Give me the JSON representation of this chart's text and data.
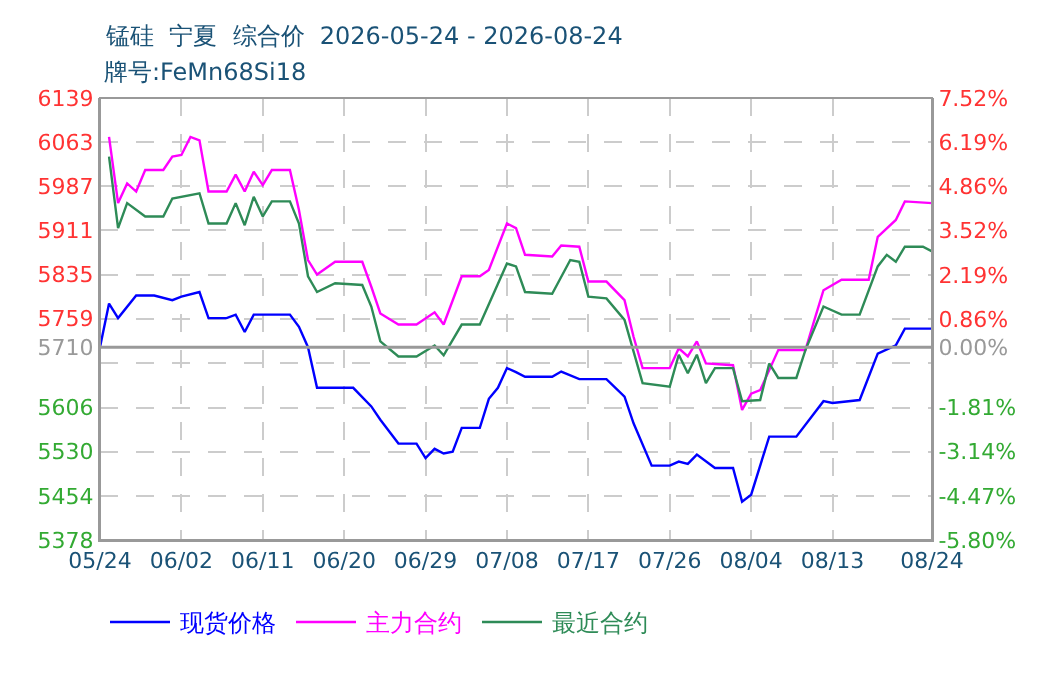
{
  "chart_data": {
    "type": "line",
    "title": "锰硅  宁夏  综合价  2026-05-24 - 2026-08-24",
    "subtitle": "牌号:FeMn68Si18",
    "xlim": [
      "2026-05-24",
      "2026-08-24"
    ],
    "xticks": [
      {
        "value": "2026-05-24",
        "label": "05/24"
      },
      {
        "value": "2026-06-02",
        "label": "06/02"
      },
      {
        "value": "2026-06-11",
        "label": "06/11"
      },
      {
        "value": "2026-06-20",
        "label": "06/20"
      },
      {
        "value": "2026-06-29",
        "label": "06/29"
      },
      {
        "value": "2026-07-08",
        "label": "07/08"
      },
      {
        "value": "2026-07-17",
        "label": "07/17"
      },
      {
        "value": "2026-07-26",
        "label": "07/26"
      },
      {
        "value": "2026-08-04",
        "label": "08/04"
      },
      {
        "value": "2026-08-13",
        "label": "08/13"
      },
      {
        "value": "2026-08-24",
        "label": "08/24"
      }
    ],
    "ylim": [
      5378,
      6139
    ],
    "yticks": [
      6139,
      6063,
      5987,
      5911,
      5835,
      5759,
      5710,
      {
        "value": 5683,
        "label": null
      },
      5606,
      5530,
      5454,
      5378
    ],
    "y2lim": [
      -5.8,
      7.52
    ],
    "y2ticks": [
      {
        "value": 7.52,
        "label": "7.52%"
      },
      {
        "value": 6.19,
        "label": "6.19%"
      },
      {
        "value": 4.86,
        "label": "4.86%"
      },
      {
        "value": 3.52,
        "label": "3.52%"
      },
      {
        "value": 2.19,
        "label": "2.19%"
      },
      {
        "value": 0.86,
        "label": "0.86%"
      },
      {
        "value": 0.0,
        "label": "0.00%"
      },
      {
        "value": -1.81,
        "label": "-1.81%"
      },
      {
        "value": -3.14,
        "label": "-3.14%"
      },
      {
        "value": -4.47,
        "label": "-4.47%"
      },
      {
        "value": -5.8,
        "label": "-5.80%"
      }
    ],
    "ref_lines": [
      {
        "axis": "y",
        "value": 5710,
        "color": "#999999",
        "line_style": "solid"
      }
    ],
    "grid": true,
    "legend": "bottom",
    "marker": "none",
    "line_style": "solid",
    "series": [
      {
        "name": "现货价格",
        "color": "#0000ff",
        "x": [
          "2026-05-24",
          "2026-05-25",
          "2026-05-26",
          "2026-05-28",
          "2026-05-30",
          "2026-06-01",
          "2026-06-02",
          "2026-06-04",
          "2026-06-05",
          "2026-06-07",
          "2026-06-08",
          "2026-06-09",
          "2026-06-10",
          "2026-06-12",
          "2026-06-14",
          "2026-06-15",
          "2026-06-16",
          "2026-06-17",
          "2026-06-21",
          "2026-06-23",
          "2026-06-24",
          "2026-06-26",
          "2026-06-28",
          "2026-06-29",
          "2026-06-30",
          "2026-07-01",
          "2026-07-02",
          "2026-07-03",
          "2026-07-05",
          "2026-07-06",
          "2026-07-07",
          "2026-07-08",
          "2026-07-09",
          "2026-07-10",
          "2026-07-13",
          "2026-07-14",
          "2026-07-16",
          "2026-07-19",
          "2026-07-21",
          "2026-07-22",
          "2026-07-24",
          "2026-07-26",
          "2026-07-27",
          "2026-07-28",
          "2026-07-29",
          "2026-07-31",
          "2026-08-02",
          "2026-08-03",
          "2026-08-04",
          "2026-08-06",
          "2026-08-09",
          "2026-08-12",
          "2026-08-13",
          "2026-08-16",
          "2026-08-18",
          "2026-08-20",
          "2026-08-21",
          "2026-08-24"
        ],
        "values": [
          5710,
          5785,
          5760,
          5799,
          5799,
          5791,
          5797,
          5805,
          5760,
          5760,
          5766,
          5736,
          5766,
          5766,
          5766,
          5745,
          5710,
          5640,
          5640,
          5608,
          5585,
          5544,
          5544,
          5519,
          5535,
          5527,
          5530,
          5571,
          5571,
          5621,
          5640,
          5674,
          5667,
          5659,
          5659,
          5668,
          5655,
          5655,
          5625,
          5579,
          5506,
          5506,
          5513,
          5509,
          5525,
          5502,
          5502,
          5444,
          5456,
          5556,
          5556,
          5617,
          5614,
          5619,
          5699,
          5713,
          5742,
          5742
        ]
      },
      {
        "name": "主力合约",
        "color": "#ff00ff",
        "x": [
          "2026-05-25",
          "2026-05-26",
          "2026-05-27",
          "2026-05-28",
          "2026-05-29",
          "2026-05-31",
          "2026-06-01",
          "2026-06-02",
          "2026-06-03",
          "2026-06-04",
          "2026-06-05",
          "2026-06-07",
          "2026-06-08",
          "2026-06-09",
          "2026-06-10",
          "2026-06-11",
          "2026-06-12",
          "2026-06-14",
          "2026-06-15",
          "2026-06-16",
          "2026-06-17",
          "2026-06-19",
          "2026-06-22",
          "2026-06-23",
          "2026-06-24",
          "2026-06-26",
          "2026-06-28",
          "2026-06-30",
          "2026-07-01",
          "2026-07-03",
          "2026-07-05",
          "2026-07-06",
          "2026-07-08",
          "2026-07-09",
          "2026-07-10",
          "2026-07-13",
          "2026-07-14",
          "2026-07-16",
          "2026-07-17",
          "2026-07-19",
          "2026-07-21",
          "2026-07-22",
          "2026-07-23",
          "2026-07-26",
          "2026-07-27",
          "2026-07-28",
          "2026-07-29",
          "2026-07-30",
          "2026-08-02",
          "2026-08-03",
          "2026-08-04",
          "2026-08-05",
          "2026-08-07",
          "2026-08-10",
          "2026-08-11",
          "2026-08-12",
          "2026-08-14",
          "2026-08-17",
          "2026-08-18",
          "2026-08-20",
          "2026-08-21",
          "2026-08-24"
        ],
        "values": [
          6072,
          5958,
          5992,
          5978,
          6015,
          6015,
          6038,
          6041,
          6072,
          6066,
          5978,
          5978,
          6007,
          5978,
          6012,
          5989,
          6015,
          6015,
          5946,
          5860,
          5835,
          5857,
          5857,
          5814,
          5768,
          5749,
          5749,
          5770,
          5749,
          5832,
          5832,
          5843,
          5923,
          5915,
          5869,
          5866,
          5885,
          5883,
          5823,
          5823,
          5791,
          5728,
          5674,
          5674,
          5708,
          5694,
          5720,
          5682,
          5679,
          5602,
          5630,
          5636,
          5705,
          5705,
          5757,
          5808,
          5826,
          5826,
          5900,
          5929,
          5961,
          5958
        ]
      },
      {
        "name": "最近合约",
        "color": "#2e8b57",
        "x": [
          "2026-05-25",
          "2026-05-26",
          "2026-05-27",
          "2026-05-29",
          "2026-05-31",
          "2026-06-01",
          "2026-06-04",
          "2026-06-05",
          "2026-06-07",
          "2026-06-08",
          "2026-06-09",
          "2026-06-10",
          "2026-06-11",
          "2026-06-12",
          "2026-06-14",
          "2026-06-15",
          "2026-06-16",
          "2026-06-17",
          "2026-06-19",
          "2026-06-22",
          "2026-06-23",
          "2026-06-24",
          "2026-06-26",
          "2026-06-28",
          "2026-06-30",
          "2026-07-01",
          "2026-07-03",
          "2026-07-05",
          "2026-07-08",
          "2026-07-09",
          "2026-07-10",
          "2026-07-13",
          "2026-07-15",
          "2026-07-16",
          "2026-07-17",
          "2026-07-19",
          "2026-07-21",
          "2026-07-23",
          "2026-07-26",
          "2026-07-27",
          "2026-07-28",
          "2026-07-29",
          "2026-07-30",
          "2026-07-31",
          "2026-08-02",
          "2026-08-03",
          "2026-08-05",
          "2026-08-06",
          "2026-08-07",
          "2026-08-09",
          "2026-08-10",
          "2026-08-12",
          "2026-08-14",
          "2026-08-16",
          "2026-08-18",
          "2026-08-19",
          "2026-08-20",
          "2026-08-21",
          "2026-08-23",
          "2026-08-24"
        ],
        "values": [
          6038,
          5915,
          5958,
          5935,
          5935,
          5966,
          5975,
          5923,
          5923,
          5958,
          5920,
          5969,
          5935,
          5961,
          5961,
          5923,
          5832,
          5805,
          5820,
          5817,
          5780,
          5720,
          5694,
          5694,
          5713,
          5696,
          5749,
          5749,
          5854,
          5849,
          5805,
          5802,
          5860,
          5857,
          5797,
          5794,
          5757,
          5648,
          5642,
          5697,
          5665,
          5697,
          5648,
          5674,
          5674,
          5617,
          5619,
          5682,
          5657,
          5657,
          5705,
          5780,
          5766,
          5766,
          5849,
          5869,
          5857,
          5883,
          5883,
          5875
        ]
      }
    ]
  }
}
